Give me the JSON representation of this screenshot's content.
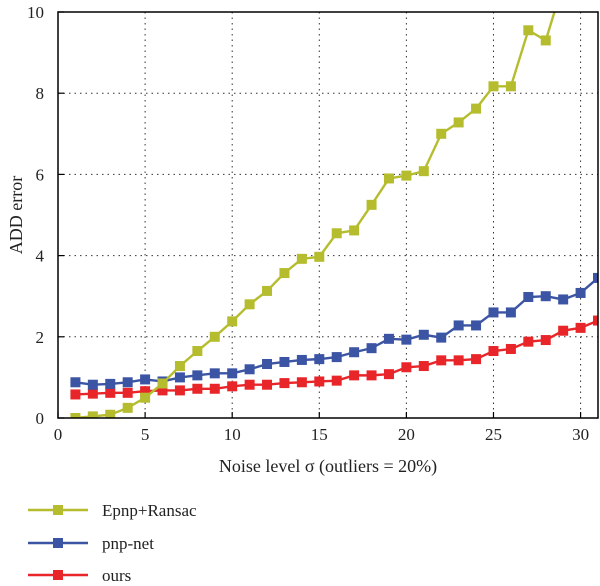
{
  "chart_data": {
    "type": "line",
    "xlabel": "Noise level σ (outliers = 20%)",
    "ylabel": "ADD error",
    "xlim": [
      0,
      31
    ],
    "ylim": [
      0,
      10
    ],
    "xticks": [
      0,
      5,
      10,
      15,
      20,
      25,
      30
    ],
    "yticks": [
      0,
      2,
      4,
      6,
      8,
      10
    ],
    "grid": "dotted",
    "legend_position": "below",
    "x": [
      1,
      2,
      3,
      4,
      5,
      6,
      7,
      8,
      9,
      10,
      11,
      12,
      13,
      14,
      15,
      16,
      17,
      18,
      19,
      20,
      21,
      22,
      23,
      24,
      25,
      26,
      27,
      28,
      29,
      30,
      31
    ],
    "series": [
      {
        "name": "Epnp+Ransac",
        "color": "#b5bd2e",
        "marker": "square",
        "values": [
          0.0,
          0.04,
          0.08,
          0.25,
          0.5,
          0.85,
          1.28,
          1.65,
          2.0,
          2.38,
          2.8,
          3.13,
          3.57,
          3.92,
          3.97,
          4.55,
          4.62,
          5.25,
          5.9,
          5.97,
          6.08,
          7.0,
          7.28,
          7.62,
          8.17,
          8.17,
          9.55,
          9.3,
          null,
          null,
          null
        ],
        "line_extends_to": [
          28.5,
          10.0
        ]
      },
      {
        "name": "pnp-net",
        "color": "#3b54a4",
        "marker": "square",
        "values": [
          0.88,
          0.82,
          0.84,
          0.88,
          0.95,
          0.9,
          1.0,
          1.05,
          1.1,
          1.1,
          1.2,
          1.33,
          1.38,
          1.43,
          1.45,
          1.5,
          1.62,
          1.72,
          1.95,
          1.93,
          2.05,
          1.98,
          2.28,
          2.28,
          2.6,
          2.6,
          2.98,
          3.0,
          2.92,
          3.08,
          3.45
        ]
      },
      {
        "name": "ours",
        "color": "#e8262a",
        "marker": "square",
        "values": [
          0.58,
          0.6,
          0.62,
          0.62,
          0.66,
          0.68,
          0.68,
          0.72,
          0.72,
          0.78,
          0.82,
          0.82,
          0.86,
          0.88,
          0.9,
          0.92,
          1.05,
          1.05,
          1.08,
          1.25,
          1.28,
          1.42,
          1.42,
          1.45,
          1.65,
          1.7,
          1.88,
          1.92,
          2.15,
          2.22,
          2.4
        ]
      }
    ]
  }
}
